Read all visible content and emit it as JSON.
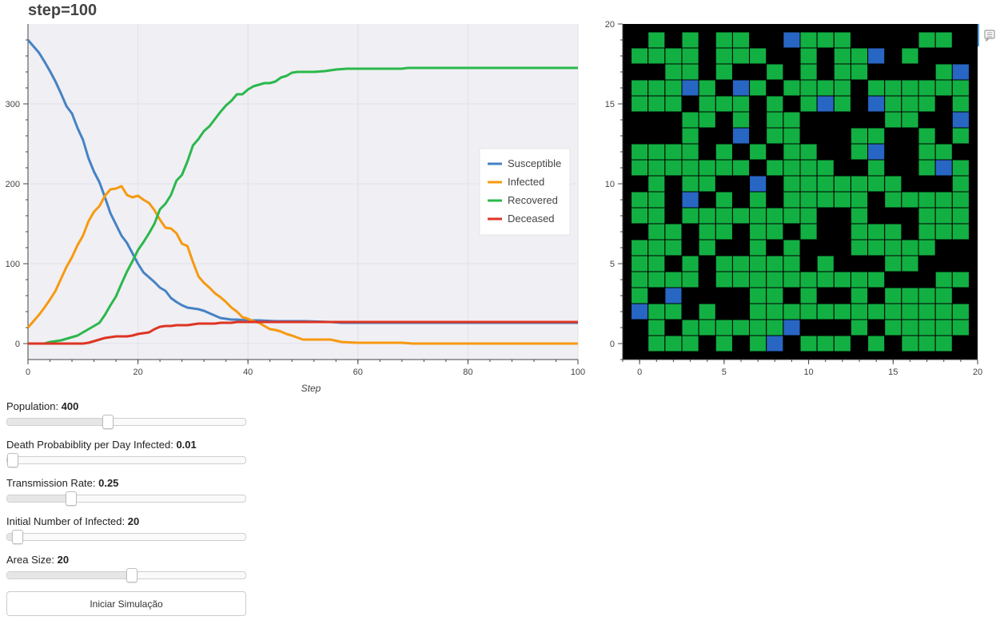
{
  "title": "step=100",
  "chart_data": [
    {
      "type": "line",
      "title": "",
      "xlabel": "Step",
      "ylabel": "",
      "xlim": [
        0,
        100
      ],
      "ylim": [
        -20,
        400
      ],
      "xticks": [
        0,
        20,
        40,
        60,
        80,
        100
      ],
      "yticks": [
        0,
        100,
        200,
        300
      ],
      "grid": true,
      "legend_position": "right",
      "series": [
        {
          "name": "Susceptible",
          "color": "#4682c4",
          "x": [
            0,
            1,
            2,
            3,
            4,
            5,
            6,
            7,
            8,
            9,
            10,
            11,
            12,
            13,
            14,
            15,
            16,
            17,
            18,
            19,
            20,
            21,
            22,
            23,
            24,
            25,
            26,
            27,
            28,
            29,
            30,
            31,
            32,
            33,
            34,
            35,
            36,
            37,
            38,
            40,
            42,
            45,
            50,
            55,
            57,
            60,
            65,
            70,
            80,
            90,
            100
          ],
          "y": [
            380,
            372,
            364,
            353,
            341,
            328,
            313,
            297,
            288,
            270,
            255,
            232,
            215,
            202,
            183,
            163,
            149,
            135,
            126,
            113,
            100,
            89,
            83,
            77,
            70,
            66,
            57,
            52,
            48,
            45,
            44,
            43,
            41,
            38,
            35,
            32,
            31,
            30,
            30,
            29,
            29,
            28,
            28,
            27,
            26,
            26,
            26,
            26,
            26,
            26,
            26
          ]
        },
        {
          "name": "Infected",
          "color": "#f7990f",
          "x": [
            0,
            1,
            2,
            3,
            4,
            5,
            6,
            7,
            8,
            9,
            10,
            11,
            12,
            13,
            14,
            15,
            16,
            17,
            18,
            19,
            20,
            21,
            22,
            23,
            24,
            25,
            26,
            27,
            28,
            29,
            30,
            31,
            32,
            33,
            34,
            35,
            36,
            37,
            38,
            39,
            40,
            41,
            42,
            43,
            44,
            45,
            46,
            47,
            48,
            50,
            55,
            57,
            60,
            65,
            68,
            70,
            80,
            90,
            100
          ],
          "y": [
            20,
            28,
            36,
            45,
            55,
            66,
            81,
            96,
            108,
            123,
            135,
            153,
            165,
            172,
            185,
            193,
            194,
            197,
            186,
            183,
            185,
            180,
            176,
            167,
            155,
            145,
            144,
            138,
            125,
            122,
            102,
            84,
            76,
            70,
            63,
            58,
            52,
            45,
            40,
            33,
            31,
            28,
            26,
            22,
            18,
            17,
            15,
            12,
            10,
            5,
            5,
            2,
            1,
            1,
            1,
            0,
            0,
            0,
            0
          ]
        },
        {
          "name": "Recovered",
          "color": "#2bb84b",
          "x": [
            0,
            3,
            4,
            5,
            6,
            7,
            8,
            9,
            10,
            11,
            12,
            13,
            14,
            15,
            16,
            17,
            18,
            19,
            20,
            21,
            22,
            23,
            24,
            25,
            26,
            27,
            28,
            29,
            30,
            31,
            32,
            33,
            34,
            35,
            36,
            37,
            38,
            39,
            40,
            41,
            42,
            43,
            44,
            45,
            46,
            47,
            48,
            49,
            50,
            52,
            54,
            56,
            58,
            60,
            65,
            68,
            69,
            70,
            80,
            90,
            100
          ],
          "y": [
            0,
            0,
            2,
            3,
            4,
            6,
            8,
            10,
            14,
            18,
            22,
            26,
            36,
            48,
            59,
            75,
            90,
            103,
            117,
            127,
            138,
            150,
            168,
            175,
            186,
            204,
            211,
            228,
            248,
            256,
            266,
            272,
            281,
            290,
            298,
            304,
            312,
            312,
            318,
            322,
            324,
            326,
            326,
            328,
            333,
            335,
            339,
            340,
            340,
            340,
            341,
            343,
            344,
            344,
            344,
            344,
            345,
            345,
            345,
            345,
            345
          ]
        },
        {
          "name": "Deceased",
          "color": "#de3423",
          "x": [
            0,
            5,
            10,
            11,
            12,
            13,
            14,
            15,
            16,
            17,
            18,
            19,
            20,
            21,
            22,
            23,
            24,
            25,
            26,
            27,
            28,
            29,
            30,
            31,
            32,
            33,
            34,
            35,
            36,
            37,
            38,
            39,
            40,
            41,
            42,
            45,
            50,
            60,
            70,
            80,
            90,
            100
          ],
          "y": [
            0,
            0,
            0,
            1,
            3,
            5,
            7,
            8,
            9,
            9,
            9,
            10,
            12,
            13,
            14,
            18,
            21,
            22,
            22,
            23,
            23,
            23,
            24,
            25,
            25,
            25,
            25,
            26,
            26,
            26,
            27,
            27,
            27,
            27,
            27,
            27,
            27,
            27,
            27,
            27,
            27,
            27
          ]
        }
      ]
    },
    {
      "type": "heatmap",
      "title": "",
      "xlim": [
        -1,
        20
      ],
      "ylim": [
        -1,
        20
      ],
      "xticks": [
        0,
        5,
        10,
        15,
        20
      ],
      "yticks": [
        0,
        5,
        10,
        15,
        20
      ],
      "background": "#000000",
      "colors": {
        "G": "#12b042",
        "B": "#2866c4"
      },
      "rows": [
        ".G.G.GG..BGGG....GG.",
        "GGGG.GGG..G.GGB.G...",
        "..GG.G..G.G.GG....GB",
        "GGGBG.BG.GGGG.GGGGGG",
        "GGG.GGG.G.GBG.BGGG.G",
        "...GG.G.GG.....GG..B",
        "...G..B.GG...GG..G.G",
        "GGGG.G.G.GG..GB..GG.",
        "GGGGGGG.GGGG..G..GBG",
        ".G.GG..B.GGGGGGG...G",
        "GG.B.G.G.GGGGG.GGGGG",
        "GG.GGGGGGGG..G...GGG",
        ".GG.GG.GG.G..GGG.GGG",
        "GGG.G..G.G...GGGGG..",
        "GG.G.GGGGG.G...GG...",
        "GGGG.GGGGGGGGGG...GG",
        "G.B....GG.G..G.GGGG.",
        "BGG.G..GGGGGGGGGGGGG",
        ".G.GGGGGGB...G.GGGGG",
        ".GGG.G.GB.GGG.G.GGG."
      ]
    }
  ],
  "controls": {
    "sliders": [
      {
        "name": "population",
        "label": "Population: ",
        "value": "400",
        "fraction": 0.4
      },
      {
        "name": "death-probability",
        "label": "Death Probabiblity per Day Infected: ",
        "value": "0.01",
        "fraction": 0.0
      },
      {
        "name": "transmission-rate",
        "label": "Transmission Rate: ",
        "value": "0.25",
        "fraction": 0.245
      },
      {
        "name": "initial-infected",
        "label": "Initial Number of Infected: ",
        "value": "20",
        "fraction": 0.02
      },
      {
        "name": "area-size",
        "label": "Area Size: ",
        "value": "20",
        "fraction": 0.5
      }
    ],
    "button_label": "Iniciar Simulação"
  }
}
